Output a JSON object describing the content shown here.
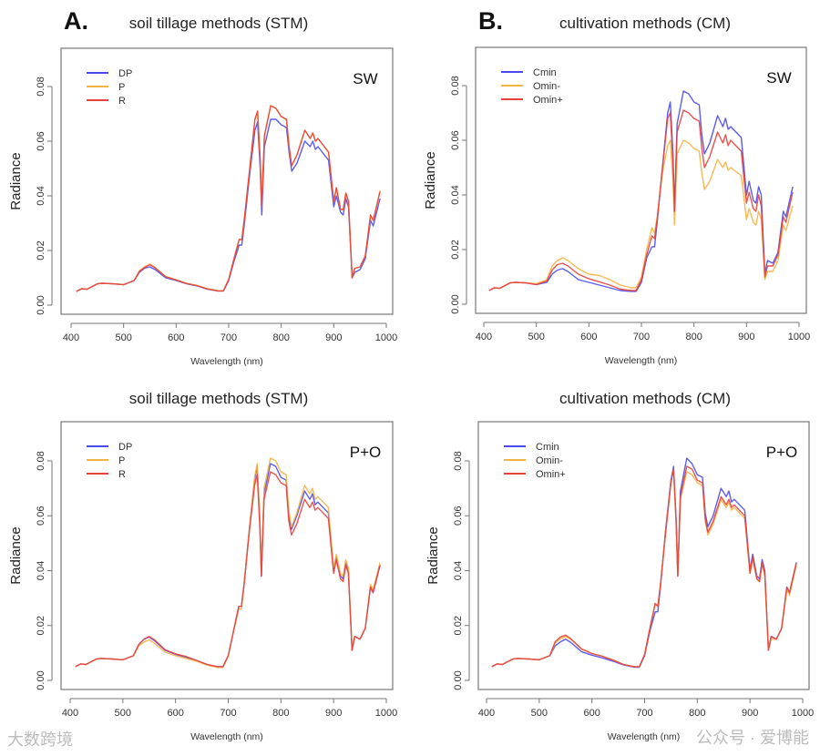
{
  "colors": {
    "blue": "#4a4af0",
    "orange": "#f5b342",
    "red": "#e8403a"
  },
  "watermarks": {
    "left": "大数跨境",
    "right": "公众号 · 爱博能"
  },
  "chart_data": [
    {
      "type": "line",
      "panel_letter": "A.",
      "title": "soil tillage methods (STM)",
      "condition": "SW",
      "xlabel": "Wavelength (nm)",
      "ylabel": "Radiance",
      "xlim": [
        400,
        1000
      ],
      "ylim": [
        0,
        0.08
      ],
      "xticks": [
        "400",
        "500",
        "600",
        "700",
        "800",
        "900",
        "1000"
      ],
      "yticks": [
        "0.00",
        "0.02",
        "0.04",
        "0.06",
        "0.08"
      ],
      "legend_position": "top-left",
      "x": [
        410,
        420,
        430,
        440,
        450,
        460,
        480,
        500,
        520,
        530,
        540,
        550,
        560,
        580,
        600,
        620,
        640,
        660,
        680,
        690,
        700,
        710,
        720,
        725,
        730,
        740,
        750,
        755,
        760,
        763,
        768,
        780,
        790,
        800,
        810,
        815,
        820,
        830,
        845,
        855,
        860,
        865,
        870,
        890,
        900,
        905,
        913,
        918,
        923,
        928,
        935,
        940,
        950,
        960,
        970,
        975,
        988
      ],
      "series": [
        {
          "name": "DP",
          "color": "blue",
          "values": [
            0.005,
            0.006,
            0.0058,
            0.0068,
            0.0078,
            0.008,
            0.0078,
            0.0075,
            0.009,
            0.012,
            0.0135,
            0.014,
            0.013,
            0.01,
            0.009,
            0.0078,
            0.007,
            0.0058,
            0.0052,
            0.0052,
            0.009,
            0.016,
            0.022,
            0.022,
            0.03,
            0.048,
            0.064,
            0.067,
            0.05,
            0.033,
            0.058,
            0.068,
            0.068,
            0.066,
            0.065,
            0.056,
            0.049,
            0.052,
            0.06,
            0.058,
            0.06,
            0.057,
            0.058,
            0.053,
            0.036,
            0.04,
            0.034,
            0.033,
            0.039,
            0.036,
            0.01,
            0.012,
            0.013,
            0.017,
            0.031,
            0.029,
            0.039
          ]
        },
        {
          "name": "P",
          "color": "orange",
          "values": [
            0.005,
            0.006,
            0.0058,
            0.0068,
            0.0078,
            0.008,
            0.0078,
            0.0075,
            0.009,
            0.0125,
            0.014,
            0.015,
            0.0138,
            0.0105,
            0.0093,
            0.008,
            0.0072,
            0.006,
            0.0053,
            0.0053,
            0.0095,
            0.017,
            0.024,
            0.024,
            0.032,
            0.05,
            0.068,
            0.071,
            0.053,
            0.036,
            0.062,
            0.073,
            0.072,
            0.069,
            0.068,
            0.058,
            0.051,
            0.055,
            0.064,
            0.061,
            0.063,
            0.06,
            0.061,
            0.056,
            0.038,
            0.043,
            0.035,
            0.035,
            0.041,
            0.038,
            0.01,
            0.0135,
            0.014,
            0.018,
            0.033,
            0.031,
            0.042
          ]
        },
        {
          "name": "R",
          "color": "red",
          "values": [
            0.005,
            0.006,
            0.0058,
            0.0068,
            0.0078,
            0.008,
            0.0078,
            0.0075,
            0.009,
            0.0124,
            0.0138,
            0.0148,
            0.0136,
            0.0104,
            0.0092,
            0.0079,
            0.0071,
            0.0059,
            0.0052,
            0.0052,
            0.0094,
            0.017,
            0.024,
            0.024,
            0.032,
            0.05,
            0.068,
            0.071,
            0.053,
            0.036,
            0.062,
            0.073,
            0.072,
            0.069,
            0.068,
            0.058,
            0.051,
            0.055,
            0.064,
            0.061,
            0.063,
            0.06,
            0.061,
            0.056,
            0.038,
            0.043,
            0.035,
            0.035,
            0.041,
            0.038,
            0.01,
            0.0135,
            0.014,
            0.018,
            0.033,
            0.031,
            0.0415
          ]
        }
      ]
    },
    {
      "type": "line",
      "panel_letter": "B.",
      "title": "cultivation methods (CM)",
      "condition": "SW",
      "xlabel": "Wavelength (nm)",
      "ylabel": "Radiance",
      "xlim": [
        400,
        1000
      ],
      "ylim": [
        0,
        0.08
      ],
      "xticks": [
        "400",
        "500",
        "600",
        "700",
        "800",
        "900",
        "1000"
      ],
      "yticks": [
        "0.00",
        "0.02",
        "0.04",
        "0.06",
        "0.08"
      ],
      "legend_position": "top-left",
      "x": [
        410,
        420,
        430,
        440,
        450,
        460,
        480,
        500,
        520,
        530,
        540,
        550,
        560,
        580,
        600,
        620,
        640,
        660,
        680,
        690,
        700,
        710,
        720,
        725,
        730,
        740,
        750,
        755,
        760,
        763,
        768,
        780,
        790,
        800,
        810,
        815,
        820,
        830,
        845,
        855,
        860,
        865,
        870,
        890,
        900,
        905,
        913,
        918,
        923,
        928,
        935,
        940,
        950,
        960,
        970,
        975,
        988
      ],
      "series": [
        {
          "name": "Cmin",
          "color": "blue",
          "values": [
            0.005,
            0.006,
            0.0058,
            0.0068,
            0.0078,
            0.008,
            0.0078,
            0.0072,
            0.008,
            0.011,
            0.0125,
            0.013,
            0.012,
            0.009,
            0.008,
            0.007,
            0.006,
            0.005,
            0.0047,
            0.0047,
            0.008,
            0.017,
            0.021,
            0.021,
            0.03,
            0.05,
            0.07,
            0.074,
            0.055,
            0.035,
            0.066,
            0.078,
            0.077,
            0.074,
            0.073,
            0.062,
            0.055,
            0.059,
            0.069,
            0.065,
            0.068,
            0.064,
            0.065,
            0.061,
            0.04,
            0.045,
            0.038,
            0.037,
            0.043,
            0.04,
            0.011,
            0.016,
            0.015,
            0.019,
            0.034,
            0.032,
            0.043
          ]
        },
        {
          "name": "Omin-",
          "color": "orange",
          "values": [
            0.005,
            0.006,
            0.0058,
            0.0068,
            0.0078,
            0.008,
            0.0078,
            0.0075,
            0.009,
            0.014,
            0.016,
            0.017,
            0.016,
            0.013,
            0.011,
            0.0105,
            0.009,
            0.007,
            0.006,
            0.006,
            0.01,
            0.02,
            0.028,
            0.026,
            0.032,
            0.048,
            0.058,
            0.06,
            0.045,
            0.029,
            0.055,
            0.06,
            0.059,
            0.057,
            0.056,
            0.048,
            0.042,
            0.045,
            0.053,
            0.05,
            0.052,
            0.049,
            0.05,
            0.047,
            0.031,
            0.035,
            0.03,
            0.029,
            0.034,
            0.031,
            0.009,
            0.012,
            0.012,
            0.016,
            0.029,
            0.027,
            0.036
          ]
        },
        {
          "name": "Omin+",
          "color": "red",
          "values": [
            0.005,
            0.006,
            0.0058,
            0.0068,
            0.0078,
            0.008,
            0.0078,
            0.0072,
            0.0085,
            0.0125,
            0.0145,
            0.015,
            0.014,
            0.011,
            0.0093,
            0.0082,
            0.007,
            0.0055,
            0.005,
            0.005,
            0.009,
            0.018,
            0.025,
            0.024,
            0.031,
            0.05,
            0.068,
            0.07,
            0.052,
            0.034,
            0.063,
            0.071,
            0.07,
            0.068,
            0.067,
            0.057,
            0.05,
            0.054,
            0.063,
            0.059,
            0.062,
            0.058,
            0.06,
            0.056,
            0.037,
            0.041,
            0.035,
            0.034,
            0.04,
            0.036,
            0.01,
            0.014,
            0.014,
            0.018,
            0.032,
            0.03,
            0.041
          ]
        }
      ]
    },
    {
      "type": "line",
      "panel_letter": "",
      "title": "soil tillage methods (STM)",
      "condition": "P+O",
      "xlabel": "Wavelength (nm)",
      "ylabel": "Radiance",
      "xlim": [
        400,
        1000
      ],
      "ylim": [
        0,
        0.08
      ],
      "xticks": [
        "400",
        "500",
        "600",
        "700",
        "800",
        "900",
        "1000"
      ],
      "yticks": [
        "0.00",
        "0.02",
        "0.04",
        "0.06",
        "0.08"
      ],
      "legend_position": "top-left",
      "x": [
        410,
        420,
        430,
        440,
        450,
        460,
        480,
        500,
        520,
        530,
        540,
        550,
        560,
        580,
        600,
        620,
        640,
        660,
        680,
        690,
        700,
        710,
        720,
        725,
        730,
        740,
        750,
        755,
        760,
        763,
        768,
        780,
        790,
        800,
        810,
        815,
        820,
        830,
        845,
        855,
        860,
        865,
        870,
        890,
        900,
        905,
        913,
        918,
        923,
        928,
        935,
        940,
        950,
        960,
        970,
        975,
        988
      ],
      "series": [
        {
          "name": "DP",
          "color": "blue",
          "values": [
            0.005,
            0.006,
            0.0058,
            0.0068,
            0.0078,
            0.008,
            0.0078,
            0.0075,
            0.009,
            0.013,
            0.015,
            0.0158,
            0.0145,
            0.011,
            0.0095,
            0.0085,
            0.0072,
            0.0058,
            0.005,
            0.005,
            0.009,
            0.018,
            0.027,
            0.027,
            0.035,
            0.055,
            0.073,
            0.078,
            0.058,
            0.038,
            0.068,
            0.079,
            0.078,
            0.074,
            0.073,
            0.06,
            0.055,
            0.06,
            0.069,
            0.066,
            0.068,
            0.064,
            0.065,
            0.061,
            0.04,
            0.045,
            0.038,
            0.037,
            0.043,
            0.04,
            0.011,
            0.016,
            0.015,
            0.019,
            0.034,
            0.032,
            0.042
          ]
        },
        {
          "name": "P",
          "color": "orange",
          "values": [
            0.005,
            0.006,
            0.0058,
            0.0068,
            0.0078,
            0.008,
            0.0078,
            0.0075,
            0.009,
            0.0125,
            0.014,
            0.0148,
            0.0135,
            0.0103,
            0.009,
            0.008,
            0.007,
            0.0055,
            0.0047,
            0.0047,
            0.0088,
            0.018,
            0.026,
            0.026,
            0.035,
            0.055,
            0.074,
            0.079,
            0.059,
            0.039,
            0.07,
            0.081,
            0.08,
            0.076,
            0.075,
            0.062,
            0.056,
            0.061,
            0.071,
            0.068,
            0.07,
            0.066,
            0.067,
            0.063,
            0.041,
            0.046,
            0.039,
            0.038,
            0.044,
            0.041,
            0.011,
            0.016,
            0.015,
            0.019,
            0.035,
            0.033,
            0.043
          ]
        },
        {
          "name": "R",
          "color": "red",
          "values": [
            0.005,
            0.006,
            0.0058,
            0.0068,
            0.0078,
            0.008,
            0.0078,
            0.0075,
            0.009,
            0.013,
            0.015,
            0.016,
            0.0148,
            0.0112,
            0.0097,
            0.0087,
            0.0073,
            0.0058,
            0.005,
            0.005,
            0.009,
            0.018,
            0.027,
            0.027,
            0.035,
            0.054,
            0.071,
            0.075,
            0.056,
            0.038,
            0.066,
            0.076,
            0.075,
            0.072,
            0.071,
            0.058,
            0.053,
            0.057,
            0.066,
            0.063,
            0.065,
            0.062,
            0.063,
            0.059,
            0.039,
            0.044,
            0.037,
            0.036,
            0.042,
            0.039,
            0.011,
            0.016,
            0.015,
            0.019,
            0.034,
            0.032,
            0.042
          ]
        }
      ]
    },
    {
      "type": "line",
      "panel_letter": "",
      "title": "cultivation methods (CM)",
      "condition": "P+O",
      "xlabel": "Wavelength (nm)",
      "ylabel": "Radiance",
      "xlim": [
        400,
        1000
      ],
      "ylim": [
        0,
        0.08
      ],
      "xticks": [
        "400",
        "500",
        "600",
        "700",
        "800",
        "900",
        "1000"
      ],
      "yticks": [
        "0.00",
        "0.02",
        "0.04",
        "0.06",
        "0.08"
      ],
      "legend_position": "top-left",
      "x": [
        410,
        420,
        430,
        440,
        450,
        460,
        480,
        500,
        520,
        530,
        540,
        550,
        560,
        580,
        600,
        620,
        640,
        660,
        680,
        690,
        700,
        710,
        720,
        725,
        730,
        740,
        750,
        755,
        760,
        763,
        768,
        780,
        790,
        800,
        810,
        815,
        820,
        830,
        845,
        855,
        860,
        865,
        870,
        890,
        900,
        905,
        913,
        918,
        923,
        928,
        935,
        940,
        950,
        960,
        970,
        975,
        988
      ],
      "series": [
        {
          "name": "Cmin",
          "color": "blue",
          "values": [
            0.005,
            0.006,
            0.0058,
            0.0068,
            0.0078,
            0.008,
            0.0078,
            0.0075,
            0.009,
            0.0125,
            0.014,
            0.015,
            0.0138,
            0.0105,
            0.0092,
            0.0082,
            0.007,
            0.0056,
            0.0048,
            0.0048,
            0.009,
            0.018,
            0.025,
            0.025,
            0.034,
            0.055,
            0.073,
            0.078,
            0.058,
            0.038,
            0.069,
            0.081,
            0.079,
            0.075,
            0.074,
            0.061,
            0.056,
            0.06,
            0.07,
            0.067,
            0.069,
            0.065,
            0.066,
            0.062,
            0.04,
            0.046,
            0.038,
            0.037,
            0.044,
            0.04,
            0.011,
            0.016,
            0.015,
            0.019,
            0.034,
            0.032,
            0.043
          ]
        },
        {
          "name": "Omin-",
          "color": "orange",
          "values": [
            0.005,
            0.006,
            0.0058,
            0.0068,
            0.0078,
            0.008,
            0.0078,
            0.0075,
            0.009,
            0.0135,
            0.0152,
            0.016,
            0.015,
            0.0115,
            0.0098,
            0.0088,
            0.0074,
            0.0058,
            0.005,
            0.005,
            0.0095,
            0.019,
            0.028,
            0.027,
            0.035,
            0.054,
            0.072,
            0.077,
            0.056,
            0.038,
            0.066,
            0.076,
            0.075,
            0.072,
            0.071,
            0.058,
            0.053,
            0.057,
            0.066,
            0.063,
            0.065,
            0.062,
            0.063,
            0.059,
            0.039,
            0.044,
            0.037,
            0.036,
            0.042,
            0.038,
            0.011,
            0.015,
            0.015,
            0.019,
            0.033,
            0.031,
            0.042
          ]
        },
        {
          "name": "Omin+",
          "color": "red",
          "values": [
            0.005,
            0.006,
            0.0058,
            0.0068,
            0.0078,
            0.008,
            0.0078,
            0.0075,
            0.009,
            0.014,
            0.0158,
            0.0165,
            0.0152,
            0.0115,
            0.0098,
            0.0088,
            0.0074,
            0.0058,
            0.005,
            0.005,
            0.0095,
            0.019,
            0.028,
            0.027,
            0.035,
            0.054,
            0.072,
            0.077,
            0.057,
            0.038,
            0.067,
            0.078,
            0.077,
            0.073,
            0.072,
            0.059,
            0.054,
            0.058,
            0.067,
            0.064,
            0.066,
            0.063,
            0.064,
            0.06,
            0.039,
            0.045,
            0.037,
            0.036,
            0.043,
            0.039,
            0.011,
            0.016,
            0.015,
            0.019,
            0.034,
            0.032,
            0.043
          ]
        }
      ]
    }
  ]
}
